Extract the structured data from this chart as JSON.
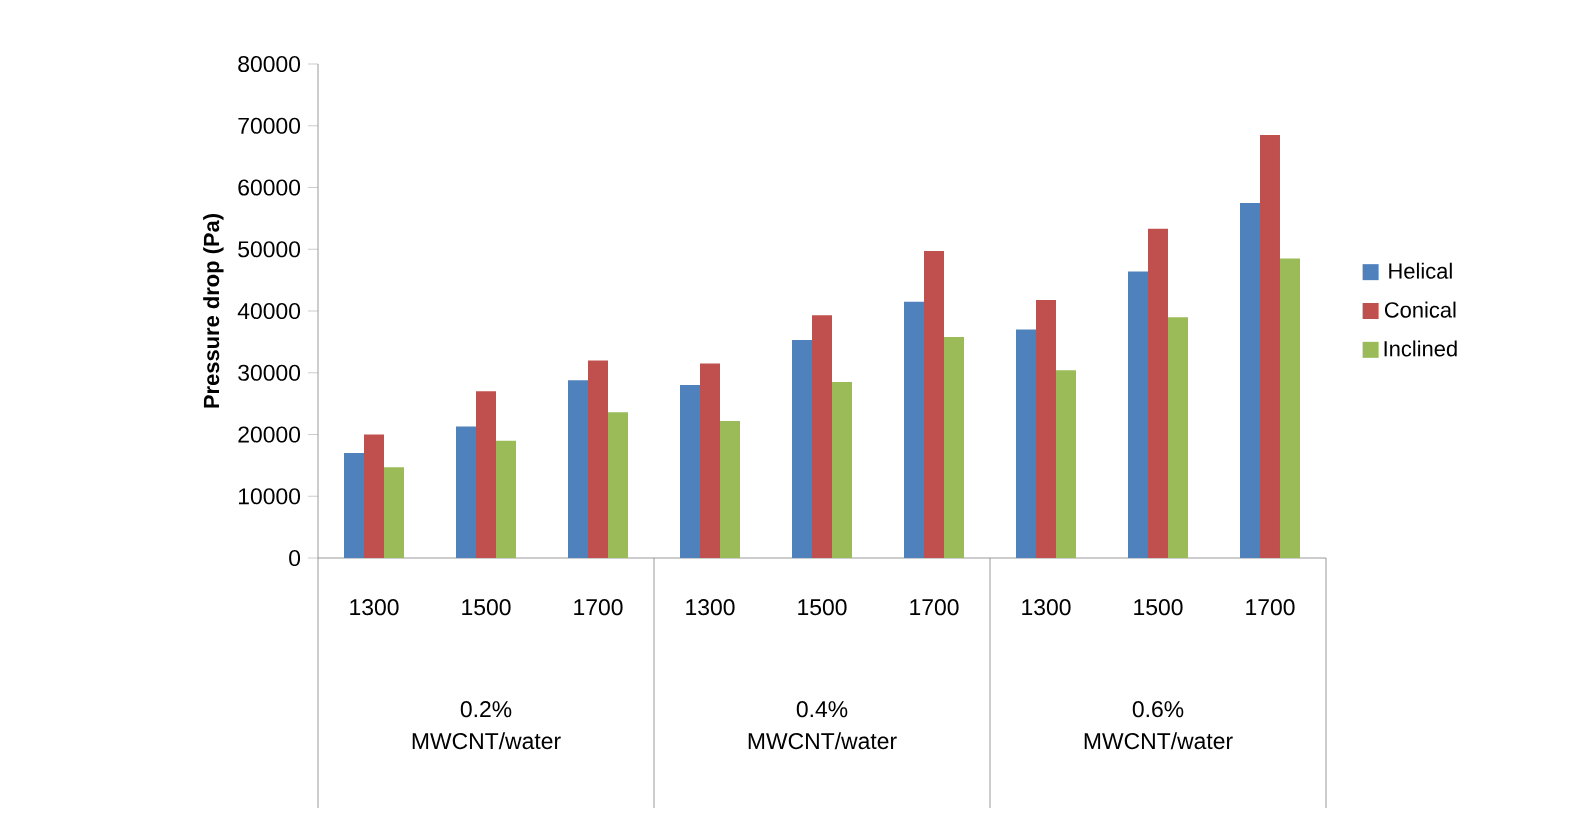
{
  "chart_data": {
    "type": "bar",
    "ylabel": "Pressure drop (Pa)",
    "categories": [
      "1300",
      "1500",
      "1700",
      "1300",
      "1500",
      "1700",
      "1300",
      "1500",
      "1700"
    ],
    "annotations": [
      "0.2% MWCNT/water",
      "0.4% MWCNT/water",
      "0.6% MWCNT/water"
    ],
    "series": [
      {
        "name": "Helical",
        "color": "#4f81bd",
        "values": [
          17000,
          21300,
          28800,
          28000,
          35300,
          41500,
          37000,
          46400,
          57500
        ]
      },
      {
        "name": "Conical",
        "color": "#c0504d",
        "values": [
          20000,
          27000,
          32000,
          31500,
          39300,
          49700,
          41800,
          53300,
          68500
        ]
      },
      {
        "name": "Inclined",
        "color": "#9bbb59",
        "values": [
          14700,
          19000,
          23600,
          22200,
          28500,
          35800,
          30400,
          39000,
          48500
        ]
      }
    ],
    "ylim": [
      0,
      80000
    ],
    "yticks": [
      0,
      10000,
      20000,
      30000,
      40000,
      50000,
      60000,
      70000,
      80000
    ],
    "legend": "right"
  }
}
